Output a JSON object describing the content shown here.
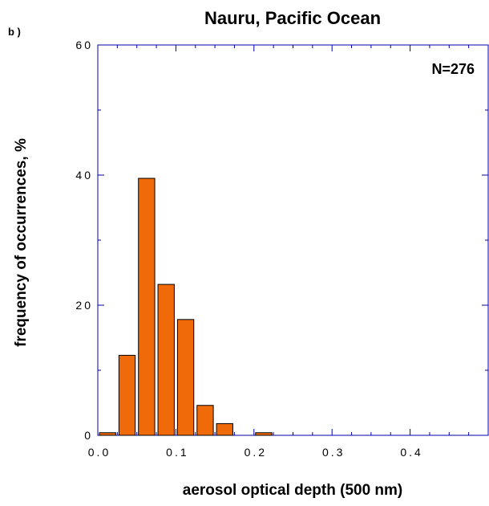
{
  "panel_label": "b )",
  "chart_data": {
    "type": "bar",
    "title": "Nauru, Pacific Ocean",
    "xlabel": "aerosol optical depth (500 nm)",
    "ylabel": "frequency of occurrences, %",
    "annotation": "N=276",
    "xlim": [
      0,
      0.5
    ],
    "ylim": [
      0,
      60
    ],
    "x_ticks": [
      0.0,
      0.1,
      0.2,
      0.3,
      0.4
    ],
    "x_tick_labels": [
      "0.0",
      "0.1",
      "0.2",
      "0.3",
      "0.4"
    ],
    "y_ticks": [
      0,
      20,
      40,
      60
    ],
    "y_tick_labels": [
      "0",
      "20",
      "40",
      "60"
    ],
    "bin_width": 0.025,
    "bins": [
      {
        "x": 0.0125,
        "value": 0.4
      },
      {
        "x": 0.0375,
        "value": 12.3
      },
      {
        "x": 0.0625,
        "value": 39.5
      },
      {
        "x": 0.0875,
        "value": 23.2
      },
      {
        "x": 0.1125,
        "value": 17.8
      },
      {
        "x": 0.1375,
        "value": 4.6
      },
      {
        "x": 0.1625,
        "value": 1.8
      },
      {
        "x": 0.2125,
        "value": 0.4
      }
    ],
    "bar_color": "#f06a0a",
    "bar_edge": "#000000",
    "axis_color": "#0000aa",
    "grid": false
  }
}
